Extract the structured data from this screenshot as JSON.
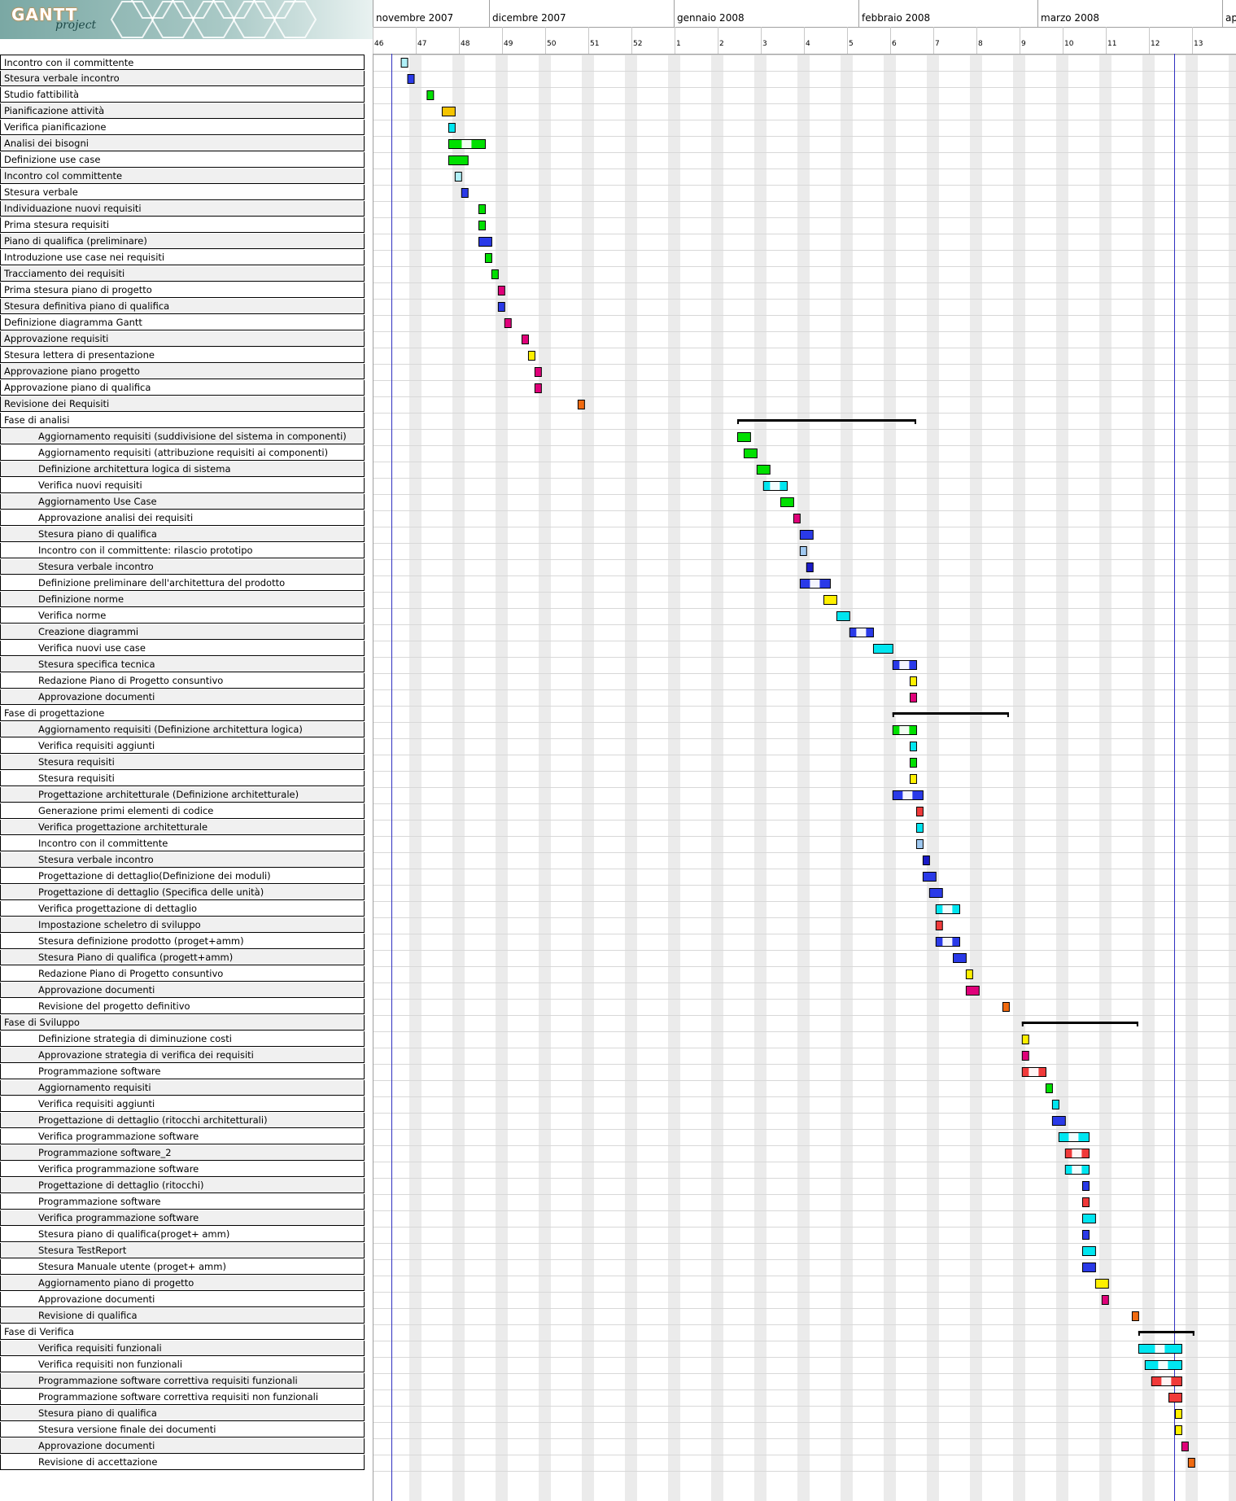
{
  "app": {
    "logo_text": "GANTT",
    "logo_subtext": "project"
  },
  "timeline": {
    "months": [
      "novembre 2007",
      "dicembre 2007",
      "gennaio 2008",
      "febbraio 2008",
      "marzo 2008",
      "ap"
    ],
    "weeks": [
      "46",
      "47",
      "48",
      "49",
      "50",
      "51",
      "52",
      "1",
      "2",
      "3",
      "4",
      "5",
      "6",
      "7",
      "8",
      "9",
      "10",
      "11",
      "12",
      "13"
    ],
    "today_marker_week": "12"
  },
  "colors": {
    "green": "#00e000",
    "blue": "#2a3ae8",
    "cyan": "#00e6f0",
    "gold": "#f5c400",
    "yellow": "#fff000",
    "magenta": "#e0007a",
    "red": "#f03a3a",
    "orange": "#f06a10",
    "lightcyan": "#b0f0f8",
    "lightblue": "#9fc8f0",
    "navy": "#1a1ac8"
  },
  "tasks": [
    {
      "name": "Incontro con il committente",
      "indent": 0,
      "start": 0.2,
      "len": 0.15,
      "color": "lightcyan"
    },
    {
      "name": "Stesura verbale incontro",
      "indent": 0,
      "start": 0.35,
      "len": 0.15,
      "color": "blue"
    },
    {
      "name": "Studio fattibilità",
      "indent": 0,
      "start": 0.8,
      "len": 0.15,
      "color": "green"
    },
    {
      "name": "Pianificazione attività",
      "indent": 0,
      "start": 1.15,
      "len": 0.3,
      "color": "gold"
    },
    {
      "name": "Verifica pianificazione",
      "indent": 0,
      "start": 1.3,
      "len": 0.15,
      "color": "cyan"
    },
    {
      "name": "Analisi dei bisogni",
      "indent": 0,
      "start": 1.3,
      "len": 0.85,
      "color": "green",
      "split": true
    },
    {
      "name": "Definizione use case",
      "indent": 0,
      "start": 1.3,
      "len": 0.45,
      "color": "green"
    },
    {
      "name": "Incontro col committente",
      "indent": 0,
      "start": 1.45,
      "len": 0.15,
      "color": "lightcyan"
    },
    {
      "name": "Stesura verbale",
      "indent": 0,
      "start": 1.6,
      "len": 0.15,
      "color": "blue"
    },
    {
      "name": "Individuazione nuovi requisiti",
      "indent": 0,
      "start": 2.0,
      "len": 0.15,
      "color": "green"
    },
    {
      "name": "Prima stesura requisiti",
      "indent": 0,
      "start": 2.0,
      "len": 0.15,
      "color": "green"
    },
    {
      "name": "Piano di qualifica (preliminare)",
      "indent": 0,
      "start": 2.0,
      "len": 0.3,
      "color": "blue"
    },
    {
      "name": "Introduzione use case nei requisiti",
      "indent": 0,
      "start": 2.15,
      "len": 0.15,
      "color": "green"
    },
    {
      "name": "Tracciamento dei requisiti",
      "indent": 0,
      "start": 2.3,
      "len": 0.15,
      "color": "green"
    },
    {
      "name": "Prima stesura piano di progetto",
      "indent": 0,
      "start": 2.45,
      "len": 0.15,
      "color": "magenta"
    },
    {
      "name": "Stesura definitiva piano di qualifica",
      "indent": 0,
      "start": 2.45,
      "len": 0.15,
      "color": "blue"
    },
    {
      "name": "Definizione diagramma Gantt",
      "indent": 0,
      "start": 2.6,
      "len": 0.15,
      "color": "magenta"
    },
    {
      "name": "Approvazione requisiti",
      "indent": 0,
      "start": 3.0,
      "len": 0.15,
      "color": "magenta"
    },
    {
      "name": "Stesura lettera di presentazione",
      "indent": 0,
      "start": 3.15,
      "len": 0.15,
      "color": "yellow"
    },
    {
      "name": "Approvazione piano progetto",
      "indent": 0,
      "start": 3.3,
      "len": 0.15,
      "color": "magenta"
    },
    {
      "name": "Approvazione piano di qualifica",
      "indent": 0,
      "start": 3.3,
      "len": 0.15,
      "color": "magenta"
    },
    {
      "name": "Revisione dei Requisiti",
      "indent": 0,
      "start": 4.3,
      "len": 0.15,
      "color": "orange"
    },
    {
      "name": "Fase di analisi",
      "indent": 0,
      "start": 8.0,
      "len": 4.15,
      "summary": true
    },
    {
      "name": "Aggiornamento requisiti (suddivisione del sistema in componenti)",
      "indent": 1,
      "start": 8.0,
      "len": 0.3,
      "color": "green"
    },
    {
      "name": "Aggiornamento requisiti (attribuzione requisiti ai componenti)",
      "indent": 1,
      "start": 8.15,
      "len": 0.3,
      "color": "green"
    },
    {
      "name": "Definizione architettura logica di sistema",
      "indent": 1,
      "start": 8.45,
      "len": 0.3,
      "color": "green"
    },
    {
      "name": "Verifica nuovi requisiti",
      "indent": 1,
      "start": 8.6,
      "len": 0.55,
      "color": "cyan",
      "split": true
    },
    {
      "name": "Aggiornamento Use Case",
      "indent": 1,
      "start": 9.0,
      "len": 0.3,
      "color": "green"
    },
    {
      "name": "Approvazione analisi dei requisiti",
      "indent": 1,
      "start": 9.3,
      "len": 0.15,
      "color": "magenta"
    },
    {
      "name": "Stesura piano di qualifica",
      "indent": 1,
      "start": 9.45,
      "len": 0.3,
      "color": "blue"
    },
    {
      "name": "Incontro con il committente: rilascio prototipo",
      "indent": 1,
      "start": 9.45,
      "len": 0.15,
      "color": "lightblue"
    },
    {
      "name": "Stesura verbale incontro",
      "indent": 1,
      "start": 9.6,
      "len": 0.15,
      "color": "navy"
    },
    {
      "name": "Definizione preliminare dell'architettura del prodotto",
      "indent": 1,
      "start": 9.45,
      "len": 0.7,
      "color": "blue",
      "split": true
    },
    {
      "name": "Definizione norme",
      "indent": 1,
      "start": 10.0,
      "len": 0.3,
      "color": "yellow"
    },
    {
      "name": "Verifica norme",
      "indent": 1,
      "start": 10.3,
      "len": 0.3,
      "color": "cyan"
    },
    {
      "name": "Creazione diagrammi",
      "indent": 1,
      "start": 10.6,
      "len": 0.55,
      "color": "blue",
      "split": true
    },
    {
      "name": "Verifica nuovi use case",
      "indent": 1,
      "start": 11.15,
      "len": 0.45,
      "color": "cyan"
    },
    {
      "name": "Stesura specifica tecnica",
      "indent": 1,
      "start": 11.6,
      "len": 0.55,
      "color": "blue",
      "split": true
    },
    {
      "name": "Redazione Piano di Progetto consuntivo",
      "indent": 1,
      "start": 12.0,
      "len": 0.15,
      "color": "yellow"
    },
    {
      "name": "Approvazione documenti",
      "indent": 1,
      "start": 12.0,
      "len": 0.15,
      "color": "magenta"
    },
    {
      "name": "Fase di progettazione",
      "indent": 0,
      "start": 11.6,
      "len": 2.7,
      "summary": true
    },
    {
      "name": "Aggiornamento requisiti (Definizione architettura logica)",
      "indent": 1,
      "start": 11.6,
      "len": 0.55,
      "color": "green",
      "split": true
    },
    {
      "name": "Verifica requisiti aggiunti",
      "indent": 1,
      "start": 12.0,
      "len": 0.15,
      "color": "cyan"
    },
    {
      "name": "Stesura requisiti",
      "indent": 1,
      "start": 12.0,
      "len": 0.15,
      "color": "green"
    },
    {
      "name": "Stesura requisiti",
      "indent": 1,
      "start": 12.0,
      "len": 0.15,
      "color": "yellow"
    },
    {
      "name": "Progettazione architetturale (Definizione architetturale)",
      "indent": 1,
      "start": 11.6,
      "len": 0.7,
      "color": "blue",
      "split": true
    },
    {
      "name": "Generazione primi elementi di codice",
      "indent": 1,
      "start": 12.15,
      "len": 0.15,
      "color": "red"
    },
    {
      "name": "Verifica progettazione architetturale",
      "indent": 1,
      "start": 12.15,
      "len": 0.15,
      "color": "cyan"
    },
    {
      "name": "Incontro con il committente",
      "indent": 1,
      "start": 12.15,
      "len": 0.15,
      "color": "lightblue"
    },
    {
      "name": "Stesura verbale incontro",
      "indent": 1,
      "start": 12.3,
      "len": 0.15,
      "color": "navy"
    },
    {
      "name": "Progettazione di dettaglio(Definizione dei moduli)",
      "indent": 1,
      "start": 12.3,
      "len": 0.3,
      "color": "blue"
    },
    {
      "name": "Progettazione di dettaglio (Specifica delle unità)",
      "indent": 1,
      "start": 12.45,
      "len": 0.3,
      "color": "blue"
    },
    {
      "name": "Verifica progettazione di dettaglio",
      "indent": 1,
      "start": 12.6,
      "len": 0.55,
      "color": "cyan",
      "split": true
    },
    {
      "name": "Impostazione scheletro di sviluppo",
      "indent": 1,
      "start": 12.6,
      "len": 0.15,
      "color": "red"
    },
    {
      "name": "Stesura definizione prodotto (proget+amm)",
      "indent": 1,
      "start": 12.6,
      "len": 0.55,
      "color": "blue",
      "split": true
    },
    {
      "name": "Stesura Piano di qualifica (progett+amm)",
      "indent": 1,
      "start": 13.0,
      "len": 0.3,
      "color": "blue"
    },
    {
      "name": "Redazione Piano di Progetto consuntivo",
      "indent": 1,
      "start": 13.3,
      "len": 0.15,
      "color": "yellow"
    },
    {
      "name": "Approvazione documenti",
      "indent": 1,
      "start": 13.3,
      "len": 0.3,
      "color": "magenta"
    },
    {
      "name": "Revisione del progetto definitivo",
      "indent": 1,
      "start": 14.15,
      "len": 0.15,
      "color": "orange"
    },
    {
      "name": "Fase di Sviluppo",
      "indent": 0,
      "start": 14.6,
      "len": 2.7,
      "summary": true
    },
    {
      "name": "Definizione strategia di diminuzione costi",
      "indent": 1,
      "start": 14.6,
      "len": 0.15,
      "color": "yellow"
    },
    {
      "name": "Approvazione strategia di verifica dei requisiti",
      "indent": 1,
      "start": 14.6,
      "len": 0.15,
      "color": "magenta"
    },
    {
      "name": "Programmazione software",
      "indent": 1,
      "start": 14.6,
      "len": 0.55,
      "color": "red",
      "split": true
    },
    {
      "name": "Aggiornamento requisiti",
      "indent": 1,
      "start": 15.15,
      "len": 0.15,
      "color": "green"
    },
    {
      "name": "Verifica requisiti aggiunti",
      "indent": 1,
      "start": 15.3,
      "len": 0.15,
      "color": "cyan"
    },
    {
      "name": "Progettazione di dettaglio (ritocchi architetturali)",
      "indent": 1,
      "start": 15.3,
      "len": 0.3,
      "color": "blue"
    },
    {
      "name": "Verifica programmazione software",
      "indent": 1,
      "start": 15.45,
      "len": 0.7,
      "color": "cyan",
      "split": true
    },
    {
      "name": "Programmazione software_2",
      "indent": 1,
      "start": 15.6,
      "len": 0.55,
      "color": "red",
      "split": true
    },
    {
      "name": "Verifica programmazione software",
      "indent": 1,
      "start": 15.6,
      "len": 0.55,
      "color": "cyan",
      "split": true
    },
    {
      "name": "Progettazione di dettaglio (ritocchi)",
      "indent": 1,
      "start": 16.0,
      "len": 0.15,
      "color": "blue"
    },
    {
      "name": "Programmazione software",
      "indent": 1,
      "start": 16.0,
      "len": 0.15,
      "color": "red"
    },
    {
      "name": "Verifica programmazione software",
      "indent": 1,
      "start": 16.0,
      "len": 0.3,
      "color": "cyan"
    },
    {
      "name": "Stesura piano di qualifica(proget+ amm)",
      "indent": 1,
      "start": 16.0,
      "len": 0.15,
      "color": "blue"
    },
    {
      "name": "Stesura TestReport",
      "indent": 1,
      "start": 16.0,
      "len": 0.3,
      "color": "cyan"
    },
    {
      "name": "Stesura Manuale utente (proget+ amm)",
      "indent": 1,
      "start": 16.0,
      "len": 0.3,
      "color": "blue"
    },
    {
      "name": "Aggiornamento piano di progetto",
      "indent": 1,
      "start": 16.3,
      "len": 0.3,
      "color": "yellow"
    },
    {
      "name": "Approvazione documenti",
      "indent": 1,
      "start": 16.45,
      "len": 0.15,
      "color": "magenta"
    },
    {
      "name": "Revisione di qualifica",
      "indent": 1,
      "start": 17.15,
      "len": 0.15,
      "color": "orange"
    },
    {
      "name": "Fase di Verifica",
      "indent": 0,
      "start": 17.3,
      "len": 1.3,
      "summary": true
    },
    {
      "name": "Verifica requisiti funzionali",
      "indent": 1,
      "start": 17.3,
      "len": 1.0,
      "color": "cyan",
      "split": true
    },
    {
      "name": "Verifica requisiti non funzionali",
      "indent": 1,
      "start": 17.45,
      "len": 0.85,
      "color": "cyan",
      "split": true
    },
    {
      "name": "Programmazione software correttiva requisiti funzionali",
      "indent": 1,
      "start": 17.6,
      "len": 0.7,
      "color": "red",
      "split": true
    },
    {
      "name": "Programmazione software correttiva requisiti non funzionali",
      "indent": 1,
      "start": 18.0,
      "len": 0.3,
      "color": "red"
    },
    {
      "name": "Stesura piano di qualifica",
      "indent": 1,
      "start": 18.15,
      "len": 0.15,
      "color": "yellow"
    },
    {
      "name": "Stesura versione finale dei documenti",
      "indent": 1,
      "start": 18.15,
      "len": 0.15,
      "color": "yellow"
    },
    {
      "name": "Approvazione documenti",
      "indent": 1,
      "start": 18.3,
      "len": 0.15,
      "color": "magenta"
    },
    {
      "name": "Revisione di accettazione",
      "indent": 1,
      "start": 18.45,
      "len": 0.15,
      "color": "orange"
    }
  ]
}
